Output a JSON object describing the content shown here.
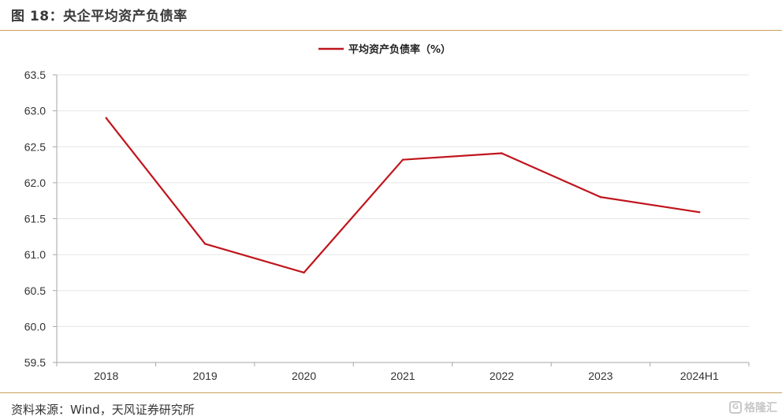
{
  "figure": {
    "title": "图 18：央企平均资产负债率",
    "source": "资料来源：Wind，天风证券研究所",
    "watermark": "格隆汇"
  },
  "colors": {
    "series": "#c0141c",
    "rule": "#c9a15a",
    "grid": "#e6e6e6",
    "axis": "#a6a6a6"
  },
  "chart_data": {
    "type": "line",
    "categories": [
      "2018",
      "2019",
      "2020",
      "2021",
      "2022",
      "2023",
      "2024H1"
    ],
    "series": [
      {
        "name": "平均资产负债率（%）",
        "values": [
          62.9,
          61.15,
          60.75,
          62.32,
          62.41,
          61.8,
          61.59
        ]
      }
    ],
    "ylim": [
      59.5,
      63.5
    ],
    "yticks": [
      "59.5",
      "60.0",
      "60.5",
      "61.0",
      "61.5",
      "62.0",
      "62.5",
      "63.0",
      "63.5"
    ],
    "grid": true,
    "legend_position": "top-center",
    "xlabel": "",
    "ylabel": ""
  }
}
